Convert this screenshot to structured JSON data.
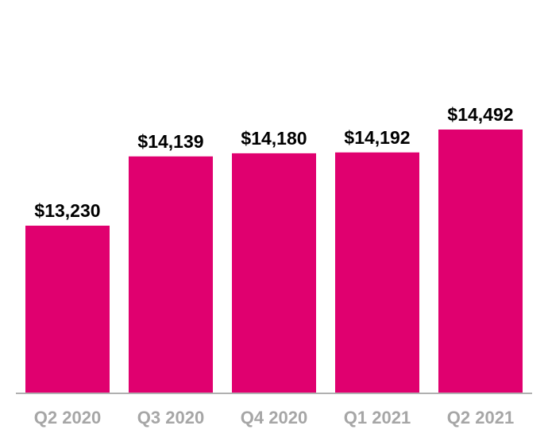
{
  "chart_data": {
    "type": "bar",
    "categories": [
      "Q2 2020",
      "Q3 2020",
      "Q4 2020",
      "Q1 2021",
      "Q2 2021"
    ],
    "values": [
      13230,
      14139,
      14180,
      14192,
      14492
    ],
    "value_labels": [
      "$13,230",
      "$14,139",
      "$14,180",
      "$14,192",
      "$14,492"
    ],
    "title": "",
    "xlabel": "",
    "ylabel": "",
    "legend": "none",
    "grid": false,
    "colors": {
      "bar": "#e0006f",
      "axis": "#b0b0b0",
      "tick_label": "#a6a6a6",
      "value_label": "#000000"
    }
  }
}
